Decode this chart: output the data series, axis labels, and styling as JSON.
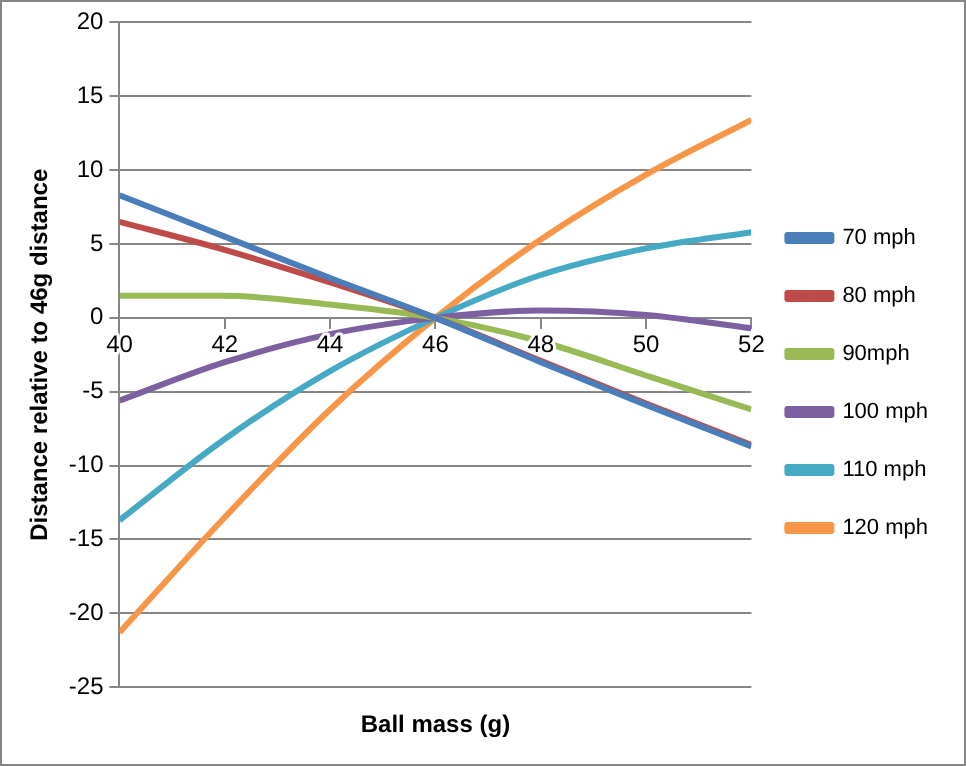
{
  "chart_data": {
    "type": "line",
    "xlabel": "Ball mass (g)",
    "ylabel": "Distance relative to 46g distance",
    "x": [
      40,
      42,
      44,
      46,
      48,
      50,
      52
    ],
    "series": [
      {
        "name": "70 mph",
        "color": "#4a7ebb",
        "values": [
          8.3,
          5.5,
          2.7,
          0,
          -3.0,
          -5.9,
          -8.7
        ]
      },
      {
        "name": "80 mph",
        "color": "#be4b48",
        "values": [
          6.5,
          4.6,
          2.4,
          0,
          -2.9,
          -5.8,
          -8.6
        ]
      },
      {
        "name": "90mph",
        "color": "#98b954",
        "values": [
          1.5,
          1.5,
          0.9,
          0,
          -1.6,
          -3.9,
          -6.2
        ]
      },
      {
        "name": "100 mph",
        "color": "#7d60a0",
        "values": [
          -5.6,
          -3.0,
          -1.1,
          0,
          0.5,
          0.2,
          -0.7
        ]
      },
      {
        "name": "110 mph",
        "color": "#46aac5",
        "values": [
          -13.7,
          -8.2,
          -3.6,
          0,
          2.9,
          4.7,
          5.8
        ]
      },
      {
        "name": "120 mph",
        "color": "#f79646",
        "values": [
          -21.3,
          -13.5,
          -6.2,
          0,
          5.3,
          9.7,
          13.4
        ]
      }
    ],
    "xlim": [
      40,
      52
    ],
    "xticks": [
      40,
      42,
      44,
      46,
      48,
      50,
      52
    ],
    "ylim": [
      -25,
      20
    ],
    "yticks": [
      -25,
      -20,
      -15,
      -10,
      -5,
      0,
      5,
      10,
      15,
      20
    ],
    "grid": "y",
    "legend": "right",
    "marker": "none",
    "line_style": "solid"
  }
}
